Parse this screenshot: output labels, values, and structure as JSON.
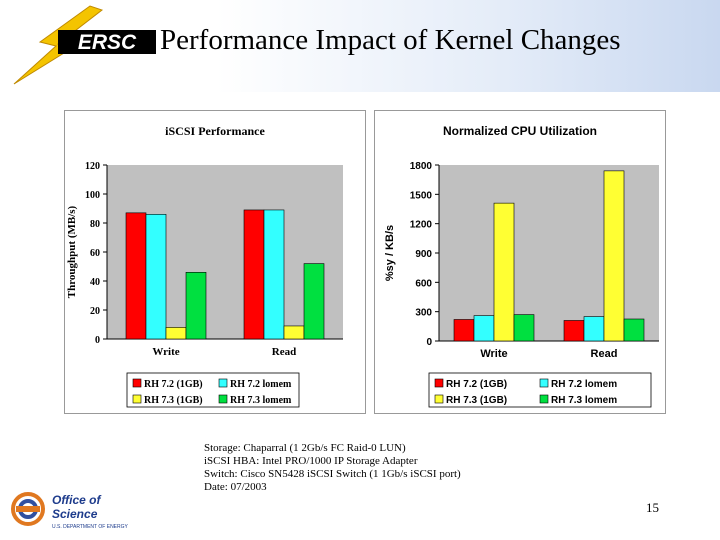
{
  "slide": {
    "title": "Performance Impact of Kernel Changes",
    "logo_text": "ERSC",
    "office_line1": "Office of",
    "office_line2": "Science",
    "office_line3": "U.S. DEPARTMENT OF ENERGY",
    "page_number": "15",
    "caption": [
      "Storage: Chaparral (1 2Gb/s FC Raid-0 LUN)",
      "iSCSI HBA: Intel PRO/1000 IP Storage Adapter",
      "Switch: Cisco SN5428 iSCSI Switch (1 1Gb/s iSCSI port)",
      "Date: 07/2003"
    ]
  },
  "colors": {
    "red": "#ff0000",
    "cyan": "#33ffff",
    "yellow": "#ffff33",
    "green": "#00e040",
    "plot_bg": "#c0c0c0"
  },
  "chart_data": [
    {
      "type": "bar",
      "title": "iSCSI Performance",
      "ylabel": "Throughput (MB/s)",
      "xlabel": "",
      "categories": [
        "Write",
        "Read"
      ],
      "ylim": [
        0,
        120
      ],
      "yticks": [
        0,
        20,
        40,
        60,
        80,
        100,
        120
      ],
      "legend_placement": "bottom",
      "series": [
        {
          "name": "RH 7.2 (1GB)",
          "values": [
            87,
            89
          ]
        },
        {
          "name": "RH 7.2 lomem",
          "values": [
            86,
            89
          ]
        },
        {
          "name": "RH 7.3 (1GB)",
          "values": [
            8,
            9
          ]
        },
        {
          "name": "RH 7.3 lomem",
          "values": [
            46,
            52
          ]
        }
      ]
    },
    {
      "type": "bar",
      "title": "Normalized CPU Utilization",
      "ylabel": "%sy / KB/s",
      "xlabel": "",
      "categories": [
        "Write",
        "Read"
      ],
      "ylim": [
        0,
        1800
      ],
      "yticks": [
        0,
        300,
        600,
        900,
        1200,
        1500,
        1800
      ],
      "legend_placement": "bottom",
      "series": [
        {
          "name": "RH 7.2 (1GB)",
          "values": [
            220,
            210
          ]
        },
        {
          "name": "RH 7.2 lomem",
          "values": [
            260,
            250
          ]
        },
        {
          "name": "RH 7.3 (1GB)",
          "values": [
            1410,
            1740
          ]
        },
        {
          "name": "RH 7.3 lomem",
          "values": [
            270,
            225
          ]
        }
      ]
    }
  ]
}
